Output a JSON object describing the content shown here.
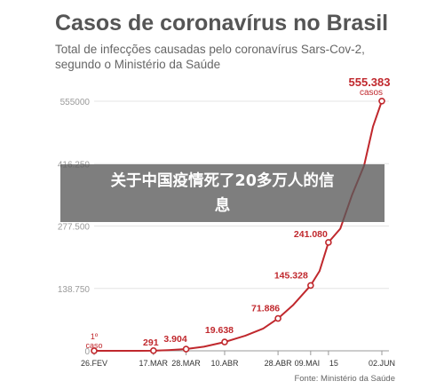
{
  "chart_data": {
    "type": "line",
    "title": "Casos de coronavírus no Brasil",
    "subtitle_lines": [
      "Total de infecções causadas pelo coronavírus Sars-Cov-2,",
      "segundo o Ministério da Saúde"
    ],
    "source": "Fonte: Ministério da Saúde",
    "ylim": [
      0,
      555000
    ],
    "y_ticks": [
      {
        "value": 0,
        "label": "0"
      },
      {
        "value": 138750,
        "label": "138.750"
      },
      {
        "value": 277500,
        "label": "277.500"
      },
      {
        "value": 416250,
        "label": "416.250"
      },
      {
        "value": 555000,
        "label": "555000"
      }
    ],
    "grid": true,
    "x_range": [
      "2020-02-26",
      "2020-06-02"
    ],
    "x_ticks": [
      {
        "date": "2020-02-26",
        "label": "26.FEV"
      },
      {
        "date": "2020-03-17",
        "label": "17.MAR"
      },
      {
        "date": "2020-03-28",
        "label": "28.MAR"
      },
      {
        "date": "2020-04-10",
        "label": "10.ABR"
      },
      {
        "date": "2020-04-28",
        "label": "28.ABR"
      },
      {
        "date": "2020-05-09",
        "label": "09.MAI"
      },
      {
        "date": "2020-05-15",
        "label": "15"
      },
      {
        "date": "2020-06-02",
        "label": "02.JUN"
      }
    ],
    "series": [
      {
        "color": "#c0282d",
        "points": [
          {
            "x": "2020-02-26",
            "y": 1
          },
          {
            "x": "2020-03-05",
            "y": 8
          },
          {
            "x": "2020-03-12",
            "y": 77
          },
          {
            "x": "2020-03-17",
            "y": 291
          },
          {
            "x": "2020-03-22",
            "y": 1546
          },
          {
            "x": "2020-03-28",
            "y": 3904
          },
          {
            "x": "2020-04-03",
            "y": 9056
          },
          {
            "x": "2020-04-10",
            "y": 19638
          },
          {
            "x": "2020-04-17",
            "y": 33682
          },
          {
            "x": "2020-04-23",
            "y": 49492
          },
          {
            "x": "2020-04-28",
            "y": 71886
          },
          {
            "x": "2020-05-03",
            "y": 101147
          },
          {
            "x": "2020-05-09",
            "y": 145328
          },
          {
            "x": "2020-05-12",
            "y": 177589
          },
          {
            "x": "2020-05-15",
            "y": 241080
          },
          {
            "x": "2020-05-19",
            "y": 271628
          },
          {
            "x": "2020-05-23",
            "y": 347398
          },
          {
            "x": "2020-05-27",
            "y": 411821
          },
          {
            "x": "2020-05-30",
            "y": 498440
          },
          {
            "x": "2020-06-02",
            "y": 555383
          }
        ]
      }
    ],
    "markers": [
      {
        "x": "2020-02-26",
        "y": 1,
        "label": "1º",
        "sublabel": "caso"
      },
      {
        "x": "2020-03-17",
        "y": 291,
        "label": "291"
      },
      {
        "x": "2020-03-28",
        "y": 3904,
        "label": "3.904"
      },
      {
        "x": "2020-04-10",
        "y": 19638,
        "label": "19.638"
      },
      {
        "x": "2020-04-28",
        "y": 71886,
        "label": "71.886"
      },
      {
        "x": "2020-05-09",
        "y": 145328,
        "label": "145.328"
      },
      {
        "x": "2020-05-15",
        "y": 241080,
        "label": "241.080"
      },
      {
        "x": "2020-06-02",
        "y": 555383,
        "label": "555.383",
        "sublabel": "casos"
      }
    ]
  },
  "overlay": {
    "line1": "关于中国疫情死了20多万人的信",
    "line2": "息"
  }
}
